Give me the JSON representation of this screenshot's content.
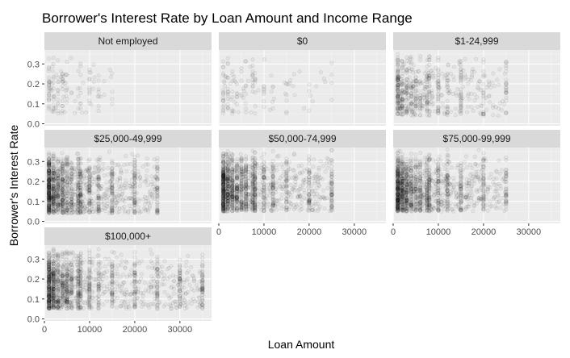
{
  "chart_data": {
    "type": "scatter",
    "title": "Borrower's Interest Rate by Loan Amount and Income Range",
    "xlabel": "Loan Amount",
    "ylabel": "Borrower's Interest Rate",
    "xlim": [
      0,
      37000
    ],
    "ylim": [
      -0.01,
      0.37
    ],
    "x_ticks": [
      0,
      10000,
      20000,
      30000
    ],
    "y_ticks": [
      0.0,
      0.1,
      0.2,
      0.3
    ],
    "x_tick_labels": [
      "0",
      "10000",
      "20000",
      "30000"
    ],
    "y_tick_labels": [
      "0.0",
      "0.1",
      "0.2",
      "0.3"
    ],
    "grid": true,
    "facets": [
      {
        "label": "Not employed",
        "x_range": [
          1000,
          15000
        ],
        "y_range": [
          0.05,
          0.36
        ],
        "density": "sparse",
        "sample_points": [
          [
            2000,
            0.3
          ],
          [
            4000,
            0.25
          ],
          [
            5000,
            0.18
          ],
          [
            10000,
            0.15
          ],
          [
            15000,
            0.16
          ]
        ]
      },
      {
        "label": "$0",
        "x_range": [
          1000,
          25000
        ],
        "y_range": [
          0.05,
          0.36
        ],
        "density": "sparse",
        "sample_points": [
          [
            2000,
            0.3
          ],
          [
            4000,
            0.2
          ],
          [
            10000,
            0.15
          ],
          [
            15000,
            0.2
          ],
          [
            25000,
            0.12
          ]
        ]
      },
      {
        "label": "$1-24,999",
        "x_range": [
          1000,
          25000
        ],
        "y_range": [
          0.04,
          0.36
        ],
        "density": "medium",
        "sample_points": [
          [
            2000,
            0.28
          ],
          [
            4000,
            0.2
          ],
          [
            10000,
            0.18
          ],
          [
            15000,
            0.15
          ],
          [
            25000,
            0.2
          ]
        ]
      },
      {
        "label": "$25,000-49,999",
        "x_range": [
          1000,
          25000
        ],
        "y_range": [
          0.04,
          0.36
        ],
        "density": "dense",
        "sample_points": [
          [
            2000,
            0.25
          ],
          [
            4000,
            0.2
          ],
          [
            10000,
            0.18
          ],
          [
            15000,
            0.15
          ],
          [
            25000,
            0.12
          ]
        ]
      },
      {
        "label": "$50,000-74,999",
        "x_range": [
          1000,
          25000
        ],
        "y_range": [
          0.05,
          0.36
        ],
        "density": "dense",
        "sample_points": [
          [
            2000,
            0.25
          ],
          [
            4000,
            0.2
          ],
          [
            10000,
            0.17
          ],
          [
            15000,
            0.15
          ],
          [
            25000,
            0.13
          ]
        ]
      },
      {
        "label": "$75,000-99,999",
        "x_range": [
          1000,
          25000
        ],
        "y_range": [
          0.05,
          0.36
        ],
        "density": "dense",
        "sample_points": [
          [
            2000,
            0.24
          ],
          [
            4000,
            0.2
          ],
          [
            10000,
            0.16
          ],
          [
            15000,
            0.14
          ],
          [
            25000,
            0.13
          ]
        ]
      },
      {
        "label": "$100,000+",
        "x_range": [
          1000,
          35000
        ],
        "y_range": [
          0.05,
          0.36
        ],
        "density": "dense",
        "sample_points": [
          [
            2000,
            0.22
          ],
          [
            4000,
            0.18
          ],
          [
            10000,
            0.15
          ],
          [
            15000,
            0.13
          ],
          [
            25000,
            0.12
          ],
          [
            35000,
            0.12
          ]
        ]
      }
    ]
  }
}
